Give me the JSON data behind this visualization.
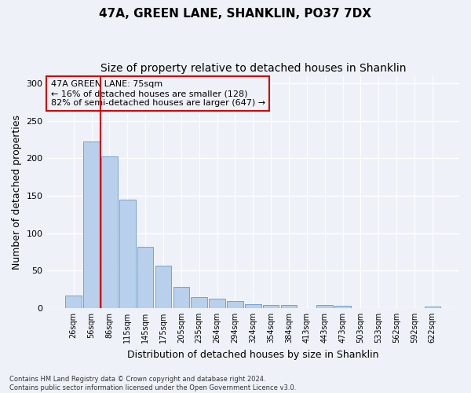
{
  "title1": "47A, GREEN LANE, SHANKLIN, PO37 7DX",
  "title2": "Size of property relative to detached houses in Shanklin",
  "xlabel": "Distribution of detached houses by size in Shanklin",
  "ylabel": "Number of detached properties",
  "categories": [
    "26sqm",
    "56sqm",
    "86sqm",
    "115sqm",
    "145sqm",
    "175sqm",
    "205sqm",
    "235sqm",
    "264sqm",
    "294sqm",
    "324sqm",
    "354sqm",
    "384sqm",
    "413sqm",
    "443sqm",
    "473sqm",
    "503sqm",
    "533sqm",
    "562sqm",
    "592sqm",
    "622sqm"
  ],
  "values": [
    17,
    222,
    202,
    145,
    82,
    57,
    28,
    15,
    12,
    9,
    5,
    4,
    4,
    0,
    4,
    3,
    0,
    0,
    0,
    0,
    2
  ],
  "bar_color": "#b8d0eb",
  "bar_edge_color": "#6699cc",
  "vline_color": "#cc0000",
  "annotation_text": "47A GREEN LANE: 75sqm\n← 16% of detached houses are smaller (128)\n82% of semi-detached houses are larger (647) →",
  "annotation_box_edge": "#cc0000",
  "ylim": [
    0,
    310
  ],
  "yticks": [
    0,
    50,
    100,
    150,
    200,
    250,
    300
  ],
  "footnote": "Contains HM Land Registry data © Crown copyright and database right 2024.\nContains public sector information licensed under the Open Government Licence v3.0.",
  "bg_color": "#eef2f8",
  "grid_color": "#ffffff",
  "title1_fontsize": 11,
  "title2_fontsize": 10,
  "xlabel_fontsize": 9,
  "ylabel_fontsize": 9,
  "footnote_fontsize": 6
}
